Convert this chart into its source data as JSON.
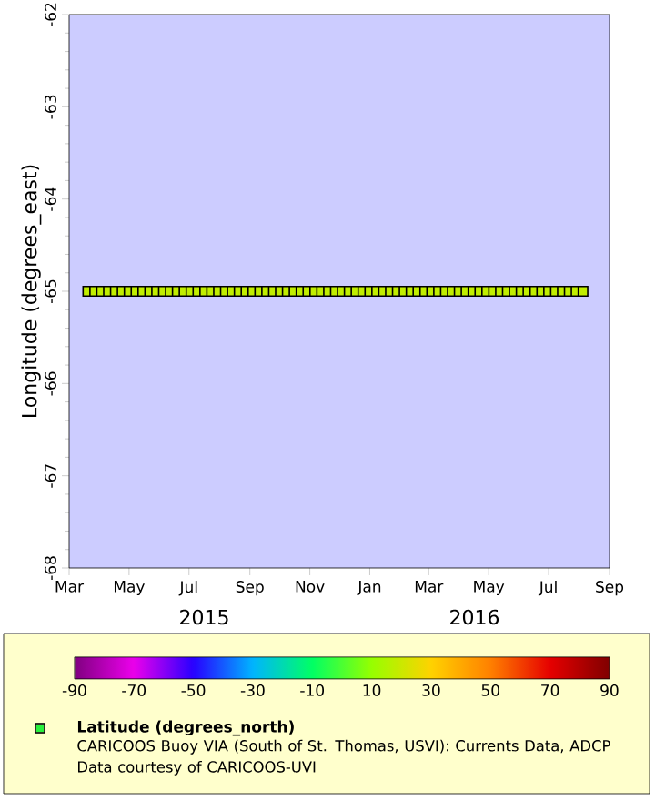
{
  "chart_data": {
    "type": "scatter",
    "ylabel": "Longitude (degrees_east)",
    "clabel": "Latitude (degrees_north)",
    "annotations": [
      "2015",
      "2016",
      "CARICOOS Buoy VIA (South of St. Thomas, USVI): Currents Data, ADCP",
      "Data courtesy of CARICOOS-UVI"
    ],
    "x": [
      "2015-03-20",
      "2015-03-27",
      "2015-04-03",
      "2015-04-10",
      "2015-04-17",
      "2015-04-24",
      "2015-05-01",
      "2015-05-08",
      "2015-05-15",
      "2015-05-22",
      "2015-05-29",
      "2015-06-05",
      "2015-06-12",
      "2015-06-19",
      "2015-06-26",
      "2015-07-03",
      "2015-07-10",
      "2015-07-17",
      "2015-07-24",
      "2015-07-31",
      "2015-08-07",
      "2015-08-14",
      "2015-08-21",
      "2015-08-28",
      "2015-09-04",
      "2015-09-11",
      "2015-09-18",
      "2015-09-25",
      "2015-10-02",
      "2015-10-09",
      "2015-10-16",
      "2015-10-23",
      "2015-10-30",
      "2015-11-06",
      "2015-11-13",
      "2015-11-20",
      "2015-11-27",
      "2015-12-04",
      "2015-12-11",
      "2015-12-18",
      "2015-12-25",
      "2016-01-01",
      "2016-01-08",
      "2016-01-15",
      "2016-01-22",
      "2016-01-29",
      "2016-02-05",
      "2016-02-12",
      "2016-02-19",
      "2016-02-26",
      "2016-03-04",
      "2016-03-11",
      "2016-03-18",
      "2016-03-25",
      "2016-04-01",
      "2016-04-08",
      "2016-04-15",
      "2016-04-22",
      "2016-04-29",
      "2016-05-06",
      "2016-05-13",
      "2016-05-20",
      "2016-05-27",
      "2016-06-03",
      "2016-06-10",
      "2016-06-17",
      "2016-06-24",
      "2016-07-01",
      "2016-07-08",
      "2016-07-15",
      "2016-07-22",
      "2016-07-29",
      "2016-08-05"
    ],
    "values": [
      -65,
      -65,
      -65,
      -65,
      -65,
      -65,
      -65,
      -65,
      -65,
      -65,
      -65,
      -65,
      -65,
      -65,
      -65,
      -65,
      -65,
      -65,
      -65,
      -65,
      -65,
      -65,
      -65,
      -65,
      -65,
      -65,
      -65,
      -65,
      -65,
      -65,
      -65,
      -65,
      -65,
      -65,
      -65,
      -65,
      -65,
      -65,
      -65,
      -65,
      -65,
      -65,
      -65,
      -65,
      -65,
      -65,
      -65,
      -65,
      -65,
      -65,
      -65,
      -65,
      -65,
      -65,
      -65,
      -65,
      -65,
      -65,
      -65,
      -65,
      -65,
      -65,
      -65,
      -65,
      -65,
      -65,
      -65,
      -65,
      -65,
      -65,
      -65,
      -65,
      -65
    ],
    "cvalues": [
      18,
      18,
      18,
      18,
      18,
      18,
      18,
      18,
      18,
      18,
      18,
      18,
      18,
      18,
      18,
      18,
      18,
      18,
      18,
      18,
      18,
      18,
      18,
      18,
      18,
      18,
      18,
      18,
      18,
      18,
      18,
      18,
      18,
      18,
      18,
      18,
      18,
      18,
      18,
      18,
      18,
      18,
      18,
      18,
      18,
      18,
      18,
      18,
      18,
      18,
      18,
      18,
      18,
      18,
      18,
      18,
      18,
      18,
      18,
      18,
      18,
      18,
      18,
      18,
      18,
      18,
      18,
      18,
      18,
      18,
      18,
      18,
      18
    ],
    "marker": "square",
    "grid": false,
    "legend": false,
    "xlim": [
      "2015-03-01",
      "2016-09-01"
    ],
    "xticks": [
      {
        "value": "2015-03-01",
        "label": "Mar"
      },
      {
        "value": "2015-05-01",
        "label": "May"
      },
      {
        "value": "2015-07-01",
        "label": "Jul"
      },
      {
        "value": "2015-09-01",
        "label": "Sep"
      },
      {
        "value": "2015-11-01",
        "label": "Nov"
      },
      {
        "value": "2016-01-01",
        "label": "Jan"
      },
      {
        "value": "2016-03-01",
        "label": "Mar"
      },
      {
        "value": "2016-05-01",
        "label": "May"
      },
      {
        "value": "2016-07-01",
        "label": "Jul"
      },
      {
        "value": "2016-09-01",
        "label": "Sep"
      }
    ],
    "ylim": [
      -68,
      -62
    ],
    "yticks": [
      -68,
      -67,
      -66,
      -65,
      -64,
      -63,
      -62
    ],
    "clim": [
      -90,
      90
    ],
    "cticks": [
      -90,
      -70,
      -50,
      -30,
      -10,
      10,
      30,
      50,
      70,
      90
    ]
  }
}
